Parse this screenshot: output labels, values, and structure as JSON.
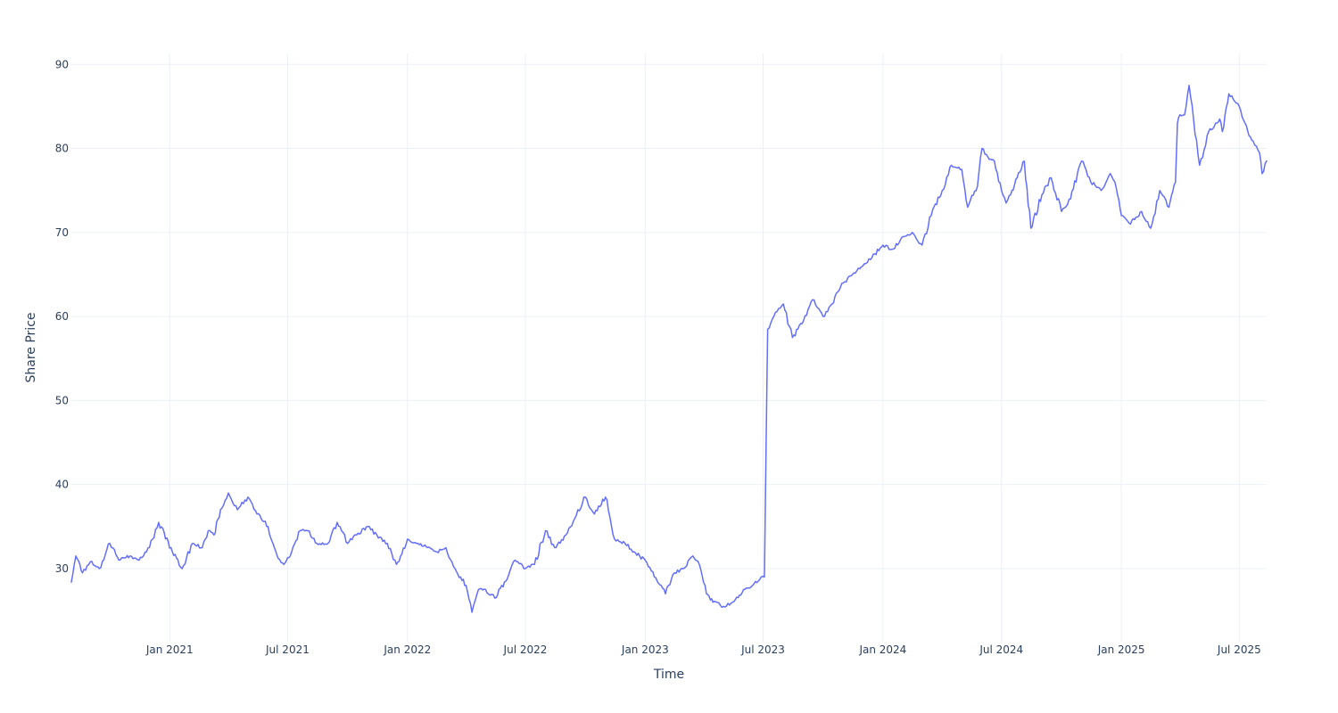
{
  "chart_data": {
    "type": "line",
    "title": "",
    "xlabel": "Time",
    "ylabel": "Share Price",
    "xlim": [
      "2020-08-03",
      "2025-08-12"
    ],
    "ylim": [
      21.3,
      91.3
    ],
    "grid": true,
    "legend": "none",
    "colors": {
      "line": "#636efa",
      "grid": "#ebf0f8",
      "text": "#2a3f5f",
      "background": "#ffffff"
    },
    "x_ticks": [
      {
        "date": "2021-01-01",
        "label": "Jan 2021"
      },
      {
        "date": "2021-07-01",
        "label": "Jul 2021"
      },
      {
        "date": "2022-01-01",
        "label": "Jan 2022"
      },
      {
        "date": "2022-07-01",
        "label": "Jul 2022"
      },
      {
        "date": "2023-01-01",
        "label": "Jan 2023"
      },
      {
        "date": "2023-07-01",
        "label": "Jul 2023"
      },
      {
        "date": "2024-01-01",
        "label": "Jan 2024"
      },
      {
        "date": "2024-07-01",
        "label": "Jul 2024"
      },
      {
        "date": "2025-01-01",
        "label": "Jan 2025"
      },
      {
        "date": "2025-07-01",
        "label": "Jul 2025"
      }
    ],
    "y_ticks": [
      {
        "value": 30,
        "label": "30"
      },
      {
        "value": 40,
        "label": "40"
      },
      {
        "value": 50,
        "label": "50"
      },
      {
        "value": 60,
        "label": "60"
      },
      {
        "value": 70,
        "label": "70"
      },
      {
        "value": 80,
        "label": "80"
      },
      {
        "value": 90,
        "label": "90"
      }
    ],
    "series": [
      {
        "x": [
          "2020-08-03",
          "2020-08-10",
          "2020-08-20",
          "2020-09-01",
          "2020-09-15",
          "2020-10-01",
          "2020-10-15",
          "2020-11-01",
          "2020-11-15",
          "2020-12-01",
          "2020-12-15",
          "2021-01-05",
          "2021-01-20",
          "2021-02-05",
          "2021-02-20",
          "2021-03-01",
          "2021-03-10",
          "2021-03-20",
          "2021-04-01",
          "2021-04-15",
          "2021-05-01",
          "2021-05-15",
          "2021-06-01",
          "2021-06-15",
          "2021-06-25",
          "2021-07-05",
          "2021-07-20",
          "2021-08-01",
          "2021-08-15",
          "2021-09-01",
          "2021-09-15",
          "2021-10-01",
          "2021-10-15",
          "2021-11-01",
          "2021-11-15",
          "2021-12-01",
          "2021-12-15",
          "2022-01-01",
          "2022-01-15",
          "2022-02-01",
          "2022-02-15",
          "2022-03-01",
          "2022-03-15",
          "2022-04-01",
          "2022-04-10",
          "2022-04-20",
          "2022-05-01",
          "2022-05-15",
          "2022-06-01",
          "2022-06-15",
          "2022-07-01",
          "2022-07-15",
          "2022-08-01",
          "2022-08-15",
          "2022-09-01",
          "2022-09-15",
          "2022-10-01",
          "2022-10-15",
          "2022-11-01",
          "2022-11-15",
          "2022-12-01",
          "2022-12-15",
          "2023-01-01",
          "2023-01-15",
          "2023-02-01",
          "2023-02-15",
          "2023-03-01",
          "2023-03-15",
          "2023-03-25",
          "2023-04-05",
          "2023-04-15",
          "2023-05-01",
          "2023-05-15",
          "2023-06-01",
          "2023-06-15",
          "2023-06-28",
          "2023-07-03",
          "2023-07-08",
          "2023-07-20",
          "2023-08-01",
          "2023-08-15",
          "2023-09-01",
          "2023-09-15",
          "2023-10-01",
          "2023-10-15",
          "2023-11-01",
          "2023-11-15",
          "2023-12-01",
          "2023-12-15",
          "2024-01-01",
          "2024-01-15",
          "2024-02-01",
          "2024-02-15",
          "2024-03-01",
          "2024-03-15",
          "2024-04-01",
          "2024-04-15",
          "2024-05-01",
          "2024-05-10",
          "2024-05-25",
          "2024-06-01",
          "2024-06-10",
          "2024-06-20",
          "2024-07-01",
          "2024-07-08",
          "2024-07-15",
          "2024-07-25",
          "2024-08-05",
          "2024-08-15",
          "2024-09-01",
          "2024-09-15",
          "2024-10-01",
          "2024-10-15",
          "2024-11-01",
          "2024-11-15",
          "2024-12-01",
          "2024-12-15",
          "2024-12-22",
          "2025-01-01",
          "2025-01-15",
          "2025-02-01",
          "2025-02-15",
          "2025-03-01",
          "2025-03-15",
          "2025-03-25",
          "2025-03-28",
          "2025-04-01",
          "2025-04-08",
          "2025-04-15",
          "2025-05-01",
          "2025-05-15",
          "2025-06-01",
          "2025-06-05",
          "2025-06-15",
          "2025-07-01",
          "2025-07-10",
          "2025-07-20",
          "2025-08-01",
          "2025-08-05",
          "2025-08-12"
        ],
        "y": [
          28.4,
          31.5,
          29.5,
          30.8,
          30.0,
          33.0,
          31.0,
          31.5,
          31.0,
          32.5,
          35.5,
          32.0,
          30.0,
          33.0,
          32.5,
          34.5,
          34.0,
          37.0,
          39.0,
          37.0,
          38.5,
          36.5,
          35.0,
          31.5,
          30.5,
          31.5,
          34.5,
          34.5,
          33.0,
          33.0,
          35.5,
          33.0,
          34.0,
          35.0,
          34.0,
          33.0,
          30.5,
          33.5,
          33.0,
          32.5,
          32.0,
          32.5,
          30.0,
          28.0,
          24.8,
          27.5,
          27.5,
          26.5,
          28.5,
          31.0,
          30.0,
          30.5,
          34.5,
          32.5,
          34.0,
          36.0,
          38.5,
          36.5,
          38.5,
          33.5,
          33.0,
          32.0,
          31.0,
          29.0,
          27.0,
          29.5,
          30.0,
          31.5,
          30.5,
          27.0,
          26.0,
          25.5,
          26.0,
          27.5,
          28.0,
          29.0,
          29.0,
          58.5,
          60.5,
          61.5,
          57.5,
          59.5,
          62.0,
          60.0,
          61.5,
          64.0,
          65.0,
          66.0,
          67.0,
          68.5,
          68.0,
          69.5,
          70.0,
          68.5,
          72.0,
          75.0,
          78.0,
          77.5,
          73.0,
          75.5,
          80.0,
          79.0,
          78.5,
          75.0,
          73.5,
          74.5,
          76.5,
          78.5,
          70.5,
          74.5,
          76.5,
          72.5,
          74.0,
          78.5,
          76.0,
          75.0,
          77.0,
          76.0,
          72.0,
          71.0,
          72.5,
          70.5,
          75.0,
          73.0,
          76.0,
          83.0,
          84.0,
          84.0,
          87.5,
          78.0,
          82.0,
          83.5,
          82.0,
          86.5,
          85.0,
          83.0,
          81.0,
          79.5,
          77.0,
          78.5
        ]
      }
    ]
  }
}
